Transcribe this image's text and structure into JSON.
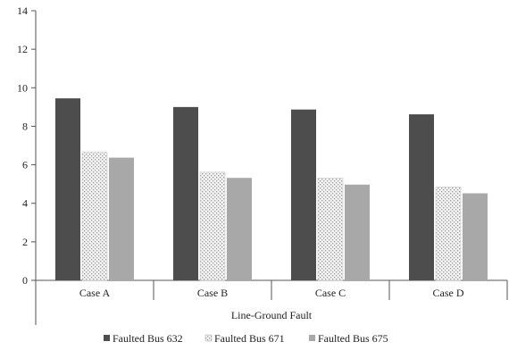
{
  "chart_data": {
    "type": "bar",
    "title": "",
    "xlabel": "Line-Ground Fault",
    "ylabel": "",
    "ylim": [
      0,
      14
    ],
    "yticks": [
      0,
      2,
      4,
      6,
      8,
      10,
      12,
      14
    ],
    "grid": false,
    "legend_position": "bottom",
    "categories": [
      "Case A",
      "Case B",
      "Case C",
      "Case D"
    ],
    "series": [
      {
        "name": "Faulted Bus 632",
        "values": [
          9.45,
          9.0,
          8.87,
          8.62
        ],
        "color": "#4d4d4d",
        "pattern": "solid"
      },
      {
        "name": "Faulted Bus 671",
        "values": [
          6.65,
          5.62,
          5.32,
          4.85
        ],
        "color": "#dcdcdc",
        "pattern": "dotted"
      },
      {
        "name": "Faulted Bus 675",
        "values": [
          6.37,
          5.32,
          4.97,
          4.52
        ],
        "color": "#a8a8a8",
        "pattern": "solid"
      }
    ]
  }
}
